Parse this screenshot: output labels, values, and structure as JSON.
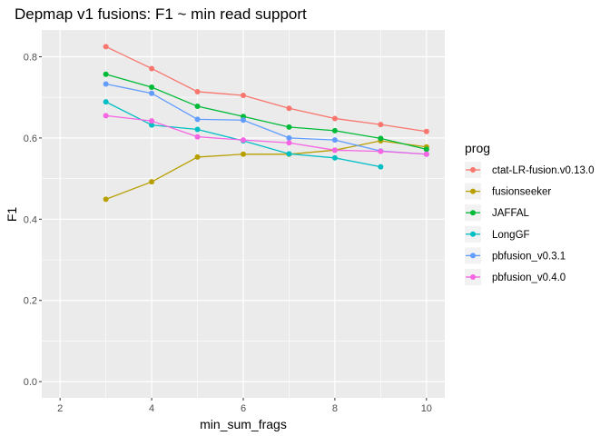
{
  "chart_data": {
    "type": "line",
    "title": "Depmap v1 fusions: F1 ~ min read support",
    "xlabel": "min_sum_frags",
    "ylabel": "F1",
    "xlim": [
      1.6,
      10.4
    ],
    "ylim": [
      -0.04,
      0.866
    ],
    "x_ticks": [
      2,
      4,
      6,
      8,
      10
    ],
    "x_tick_labels": [
      "2",
      "4",
      "6",
      "8",
      "10"
    ],
    "y_ticks": [
      0.0,
      0.2,
      0.4,
      0.6,
      0.8
    ],
    "y_tick_labels": [
      "0.0",
      "0.2",
      "0.4",
      "0.6",
      "0.8"
    ],
    "grid": true,
    "legend_title": "prog",
    "legend_position": "right",
    "x": [
      3,
      4,
      5,
      6,
      7,
      8,
      9,
      10
    ],
    "series": [
      {
        "name": "ctat-LR-fusion.v0.13.0",
        "color": "#F8766D",
        "values": [
          0.825,
          0.771,
          0.714,
          0.705,
          0.673,
          0.648,
          0.633,
          0.616
        ]
      },
      {
        "name": "fusionseeker",
        "color": "#B79F00",
        "values": [
          0.449,
          0.492,
          0.553,
          0.56,
          0.56,
          0.57,
          0.593,
          0.578
        ]
      },
      {
        "name": "JAFFAL",
        "color": "#00BA38",
        "values": [
          0.757,
          0.725,
          0.678,
          0.653,
          0.627,
          0.618,
          0.599,
          0.572
        ]
      },
      {
        "name": "LongGF",
        "color": "#00BFC4",
        "values": [
          0.689,
          0.632,
          0.621,
          0.593,
          0.561,
          0.551,
          0.529,
          null
        ]
      },
      {
        "name": "pbfusion_v0.3.1",
        "color": "#619CFF",
        "values": [
          0.733,
          0.71,
          0.646,
          0.644,
          0.6,
          0.595,
          0.568,
          0.56
        ]
      },
      {
        "name": "pbfusion_v0.4.0",
        "color": "#F564E3",
        "values": [
          0.655,
          0.642,
          0.603,
          0.595,
          0.588,
          0.57,
          0.567,
          0.56
        ]
      }
    ]
  }
}
